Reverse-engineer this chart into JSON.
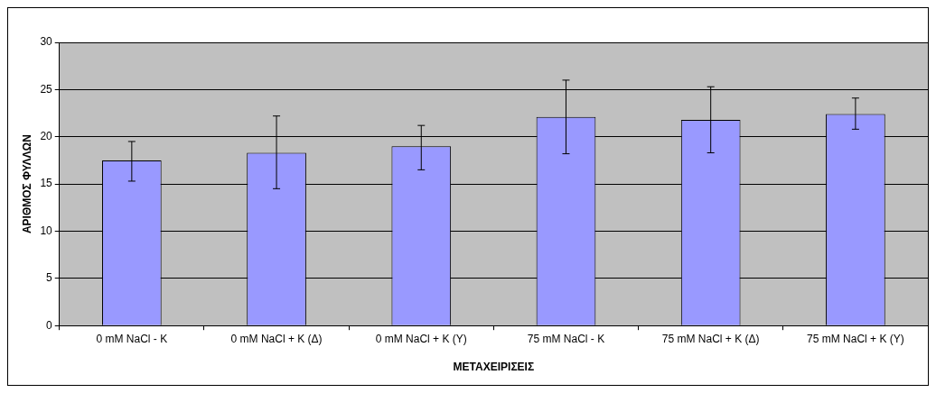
{
  "chart_data": {
    "type": "bar",
    "xlabel": "ΜΕΤΑΧΕΙΡΙΣΕΙΣ",
    "ylabel": "ΑΡΙΘΜΟΣ ΦΥΛΛΩΝ",
    "categories": [
      "0 mM NaCl - K",
      "0 mM NaCl + K (Δ)",
      "0 mM NaCl + K (Υ)",
      "75 mM NaCl - K",
      "75 mM NaCl + K (Δ)",
      "75 mM NaCl + K (Υ)"
    ],
    "values": [
      17.5,
      18.3,
      19.0,
      22.1,
      21.8,
      22.4
    ],
    "errors": [
      [
        15.3,
        19.5
      ],
      [
        14.5,
        22.2
      ],
      [
        16.5,
        21.2
      ],
      [
        18.2,
        26.0
      ],
      [
        18.3,
        25.3
      ],
      [
        20.8,
        24.1
      ]
    ],
    "color": "#9999ff",
    "ylim": [
      0,
      30
    ],
    "yticks": [
      0,
      5,
      10,
      15,
      20,
      25,
      30
    ],
    "grid": "y",
    "legend": false
  }
}
